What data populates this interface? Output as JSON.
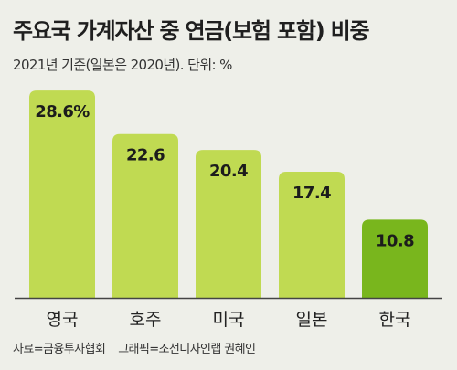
{
  "header": {
    "title": "주요국 가계자산 중 연금(보험 포함) 비중",
    "subtitle": "2021년 기준(일본은 2020년). 단위: %"
  },
  "chart_data": {
    "type": "bar",
    "categories": [
      "영국",
      "호주",
      "미국",
      "일본",
      "한국"
    ],
    "values": [
      28.6,
      22.6,
      20.4,
      17.4,
      10.8
    ],
    "value_labels": [
      "28.6%",
      "22.6",
      "20.4",
      "17.4",
      "10.8"
    ],
    "unit": "%",
    "ylim": [
      0,
      30
    ],
    "grid": false,
    "legend": "none",
    "highlight_category": "한국"
  },
  "colors": {
    "bar": "#c0da52",
    "bar_highlight": "#79b61d",
    "baseline": "#444444",
    "background": "#eeefe9"
  },
  "footer": {
    "source": "자료=금융투자협회",
    "credit": "그래픽=조선디자인랩 권혜인"
  }
}
